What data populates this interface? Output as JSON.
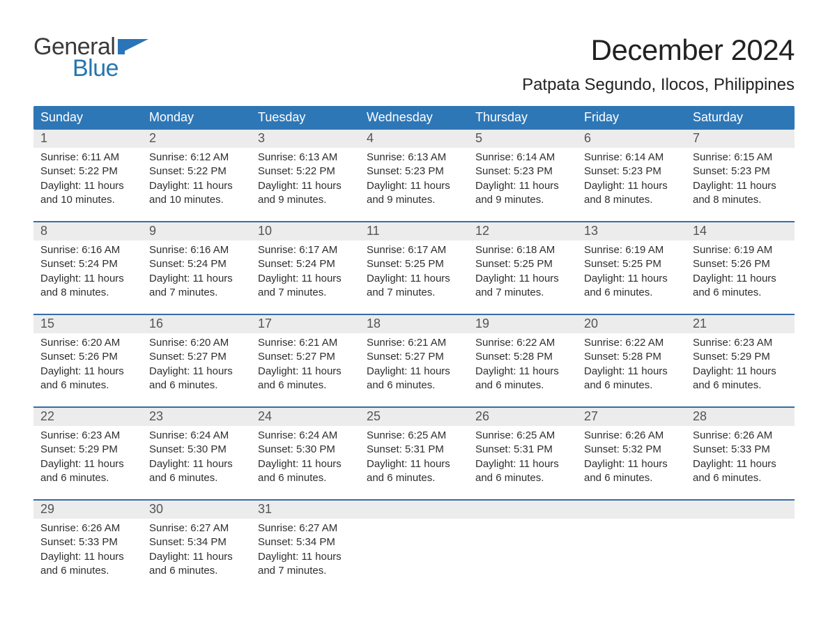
{
  "colors": {
    "blue_header": "#2e77b7",
    "blue_accent": "#2a74b8",
    "blue_text": "#2476b2",
    "row_grey": "#ececec",
    "grey_text": "#545454",
    "body_text": "#333333",
    "page_bg": "#ffffff",
    "border_blue": "#346da7",
    "logo_flag": "#2a74b8"
  },
  "typography": {
    "month_title_fontsize": 42,
    "location_fontsize": 24,
    "header_fontsize": 18,
    "daynum_fontsize": 18,
    "body_fontsize": 15,
    "logo_fontsize": 34
  },
  "logo": {
    "line1": "General",
    "line2": "Blue"
  },
  "title": "December 2024",
  "location": "Patpata Segundo, Ilocos, Philippines",
  "weekday_labels": [
    "Sunday",
    "Monday",
    "Tuesday",
    "Wednesday",
    "Thursday",
    "Friday",
    "Saturday"
  ],
  "layout": {
    "columns": 7,
    "weeks": 5
  },
  "days": [
    {
      "n": "1",
      "sunrise": "Sunrise: 6:11 AM",
      "sunset": "Sunset: 5:22 PM",
      "dl1": "Daylight: 11 hours",
      "dl2": "and 10 minutes."
    },
    {
      "n": "2",
      "sunrise": "Sunrise: 6:12 AM",
      "sunset": "Sunset: 5:22 PM",
      "dl1": "Daylight: 11 hours",
      "dl2": "and 10 minutes."
    },
    {
      "n": "3",
      "sunrise": "Sunrise: 6:13 AM",
      "sunset": "Sunset: 5:22 PM",
      "dl1": "Daylight: 11 hours",
      "dl2": "and 9 minutes."
    },
    {
      "n": "4",
      "sunrise": "Sunrise: 6:13 AM",
      "sunset": "Sunset: 5:23 PM",
      "dl1": "Daylight: 11 hours",
      "dl2": "and 9 minutes."
    },
    {
      "n": "5",
      "sunrise": "Sunrise: 6:14 AM",
      "sunset": "Sunset: 5:23 PM",
      "dl1": "Daylight: 11 hours",
      "dl2": "and 9 minutes."
    },
    {
      "n": "6",
      "sunrise": "Sunrise: 6:14 AM",
      "sunset": "Sunset: 5:23 PM",
      "dl1": "Daylight: 11 hours",
      "dl2": "and 8 minutes."
    },
    {
      "n": "7",
      "sunrise": "Sunrise: 6:15 AM",
      "sunset": "Sunset: 5:23 PM",
      "dl1": "Daylight: 11 hours",
      "dl2": "and 8 minutes."
    },
    {
      "n": "8",
      "sunrise": "Sunrise: 6:16 AM",
      "sunset": "Sunset: 5:24 PM",
      "dl1": "Daylight: 11 hours",
      "dl2": "and 8 minutes."
    },
    {
      "n": "9",
      "sunrise": "Sunrise: 6:16 AM",
      "sunset": "Sunset: 5:24 PM",
      "dl1": "Daylight: 11 hours",
      "dl2": "and 7 minutes."
    },
    {
      "n": "10",
      "sunrise": "Sunrise: 6:17 AM",
      "sunset": "Sunset: 5:24 PM",
      "dl1": "Daylight: 11 hours",
      "dl2": "and 7 minutes."
    },
    {
      "n": "11",
      "sunrise": "Sunrise: 6:17 AM",
      "sunset": "Sunset: 5:25 PM",
      "dl1": "Daylight: 11 hours",
      "dl2": "and 7 minutes."
    },
    {
      "n": "12",
      "sunrise": "Sunrise: 6:18 AM",
      "sunset": "Sunset: 5:25 PM",
      "dl1": "Daylight: 11 hours",
      "dl2": "and 7 minutes."
    },
    {
      "n": "13",
      "sunrise": "Sunrise: 6:19 AM",
      "sunset": "Sunset: 5:25 PM",
      "dl1": "Daylight: 11 hours",
      "dl2": "and 6 minutes."
    },
    {
      "n": "14",
      "sunrise": "Sunrise: 6:19 AM",
      "sunset": "Sunset: 5:26 PM",
      "dl1": "Daylight: 11 hours",
      "dl2": "and 6 minutes."
    },
    {
      "n": "15",
      "sunrise": "Sunrise: 6:20 AM",
      "sunset": "Sunset: 5:26 PM",
      "dl1": "Daylight: 11 hours",
      "dl2": "and 6 minutes."
    },
    {
      "n": "16",
      "sunrise": "Sunrise: 6:20 AM",
      "sunset": "Sunset: 5:27 PM",
      "dl1": "Daylight: 11 hours",
      "dl2": "and 6 minutes."
    },
    {
      "n": "17",
      "sunrise": "Sunrise: 6:21 AM",
      "sunset": "Sunset: 5:27 PM",
      "dl1": "Daylight: 11 hours",
      "dl2": "and 6 minutes."
    },
    {
      "n": "18",
      "sunrise": "Sunrise: 6:21 AM",
      "sunset": "Sunset: 5:27 PM",
      "dl1": "Daylight: 11 hours",
      "dl2": "and 6 minutes."
    },
    {
      "n": "19",
      "sunrise": "Sunrise: 6:22 AM",
      "sunset": "Sunset: 5:28 PM",
      "dl1": "Daylight: 11 hours",
      "dl2": "and 6 minutes."
    },
    {
      "n": "20",
      "sunrise": "Sunrise: 6:22 AM",
      "sunset": "Sunset: 5:28 PM",
      "dl1": "Daylight: 11 hours",
      "dl2": "and 6 minutes."
    },
    {
      "n": "21",
      "sunrise": "Sunrise: 6:23 AM",
      "sunset": "Sunset: 5:29 PM",
      "dl1": "Daylight: 11 hours",
      "dl2": "and 6 minutes."
    },
    {
      "n": "22",
      "sunrise": "Sunrise: 6:23 AM",
      "sunset": "Sunset: 5:29 PM",
      "dl1": "Daylight: 11 hours",
      "dl2": "and 6 minutes."
    },
    {
      "n": "23",
      "sunrise": "Sunrise: 6:24 AM",
      "sunset": "Sunset: 5:30 PM",
      "dl1": "Daylight: 11 hours",
      "dl2": "and 6 minutes."
    },
    {
      "n": "24",
      "sunrise": "Sunrise: 6:24 AM",
      "sunset": "Sunset: 5:30 PM",
      "dl1": "Daylight: 11 hours",
      "dl2": "and 6 minutes."
    },
    {
      "n": "25",
      "sunrise": "Sunrise: 6:25 AM",
      "sunset": "Sunset: 5:31 PM",
      "dl1": "Daylight: 11 hours",
      "dl2": "and 6 minutes."
    },
    {
      "n": "26",
      "sunrise": "Sunrise: 6:25 AM",
      "sunset": "Sunset: 5:31 PM",
      "dl1": "Daylight: 11 hours",
      "dl2": "and 6 minutes."
    },
    {
      "n": "27",
      "sunrise": "Sunrise: 6:26 AM",
      "sunset": "Sunset: 5:32 PM",
      "dl1": "Daylight: 11 hours",
      "dl2": "and 6 minutes."
    },
    {
      "n": "28",
      "sunrise": "Sunrise: 6:26 AM",
      "sunset": "Sunset: 5:33 PM",
      "dl1": "Daylight: 11 hours",
      "dl2": "and 6 minutes."
    },
    {
      "n": "29",
      "sunrise": "Sunrise: 6:26 AM",
      "sunset": "Sunset: 5:33 PM",
      "dl1": "Daylight: 11 hours",
      "dl2": "and 6 minutes."
    },
    {
      "n": "30",
      "sunrise": "Sunrise: 6:27 AM",
      "sunset": "Sunset: 5:34 PM",
      "dl1": "Daylight: 11 hours",
      "dl2": "and 6 minutes."
    },
    {
      "n": "31",
      "sunrise": "Sunrise: 6:27 AM",
      "sunset": "Sunset: 5:34 PM",
      "dl1": "Daylight: 11 hours",
      "dl2": "and 7 minutes."
    }
  ]
}
